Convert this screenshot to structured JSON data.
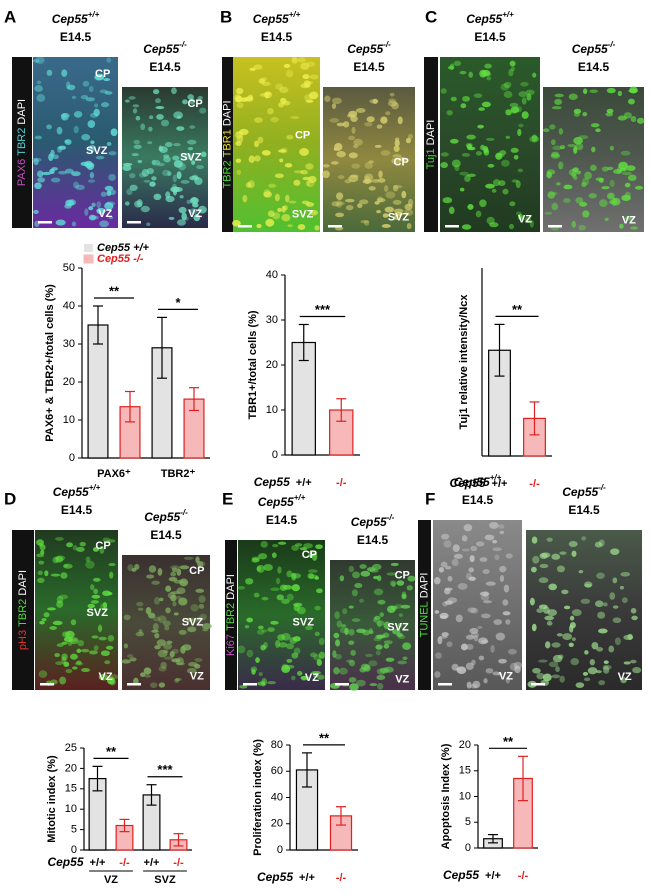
{
  "panels": [
    {
      "letter": "A",
      "genotypes": [
        {
          "gene": "Cep55",
          "allele": "+/+",
          "stage": "E14.5"
        },
        {
          "gene": "Cep55",
          "allele": "-/-",
          "stage": "E14.5"
        }
      ],
      "stains": [
        {
          "text": "PAX6",
          "color": "#c24fc4"
        },
        {
          "text": "TBR2",
          "color": "#4fd3d8"
        },
        {
          "text": "DAPI",
          "color": "#ffffff"
        }
      ],
      "regions": [
        [
          "CP",
          "SVZ",
          "VZ"
        ],
        [
          "CP",
          "SVZ",
          "VZ"
        ]
      ]
    },
    {
      "letter": "B",
      "genotypes": [
        {
          "gene": "Cep55",
          "allele": "+/+",
          "stage": "E14.5"
        },
        {
          "gene": "Cep55",
          "allele": "-/-",
          "stage": "E14.5"
        }
      ],
      "stains": [
        {
          "text": "TBR2",
          "color": "#4fdc3a"
        },
        {
          "text": "TBR1",
          "color": "#f0e030"
        },
        {
          "text": "DAPI",
          "color": "#ffffff"
        }
      ],
      "regions": [
        [
          "CP",
          "SVZ"
        ],
        [
          "CP",
          "SVZ"
        ]
      ]
    },
    {
      "letter": "C",
      "genotypes": [
        {
          "gene": "Cep55",
          "allele": "+/+",
          "stage": "E14.5"
        },
        {
          "gene": "Cep55",
          "allele": "-/-",
          "stage": "E14.5"
        }
      ],
      "stains": [
        {
          "text": "Tuj1",
          "color": "#4fdc3a"
        },
        {
          "text": "DAPI",
          "color": "#ffffff"
        }
      ],
      "regions": [
        [
          "VZ"
        ],
        [
          "VZ"
        ]
      ]
    },
    {
      "letter": "D",
      "genotypes": [
        {
          "gene": "Cep55",
          "allele": "+/+",
          "stage": "E14.5"
        },
        {
          "gene": "Cep55",
          "allele": "-/-",
          "stage": "E14.5"
        }
      ],
      "stains": [
        {
          "text": "pH3",
          "color": "#e83030"
        },
        {
          "text": "TBR2",
          "color": "#4fdc3a"
        },
        {
          "text": "DAPI",
          "color": "#ffffff"
        }
      ],
      "regions": [
        [
          "CP",
          "SVZ",
          "VZ"
        ],
        [
          "CP",
          "SVZ",
          "VZ"
        ]
      ]
    },
    {
      "letter": "E",
      "genotypes": [
        {
          "gene": "Cep55",
          "allele": "+/+",
          "stage": "E14.5"
        },
        {
          "gene": "Cep55",
          "allele": "-/-",
          "stage": "E14.5"
        }
      ],
      "stains": [
        {
          "text": "Ki67",
          "color": "#c24fc4"
        },
        {
          "text": "TBR2",
          "color": "#4fdc3a"
        },
        {
          "text": "DAPI",
          "color": "#ffffff"
        }
      ],
      "regions": [
        [
          "CP",
          "SVZ",
          "VZ"
        ],
        [
          "CP",
          "SVZ",
          "VZ"
        ]
      ]
    },
    {
      "letter": "F",
      "genotypes": [
        {
          "gene": "Cep55",
          "allele": "+/+",
          "stage": "E14.5"
        },
        {
          "gene": "Cep55",
          "allele": "-/-",
          "stage": "E14.5"
        }
      ],
      "stains": [
        {
          "text": "TUNEL",
          "color": "#4fdc3a"
        },
        {
          "text": "DAPI",
          "color": "#ffffff"
        }
      ],
      "regions": [
        [
          "VZ"
        ],
        [
          "VZ"
        ]
      ]
    }
  ],
  "chart_data": [
    {
      "type": "bar",
      "ylabel": "PAX6+ & TBR2+/total cells (%)",
      "categories": [
        "PAX6⁺",
        "TBR2⁺"
      ],
      "series": [
        {
          "name": "Cep55 +/+",
          "color": "#e3e3e3",
          "edgecolor": "#000000",
          "values": [
            35,
            29
          ],
          "errors": [
            5,
            8
          ]
        },
        {
          "name": "Cep55 -/-",
          "color": "#f6b8b8",
          "edgecolor": "#e02020",
          "values": [
            13.5,
            15.5
          ],
          "errors": [
            4,
            3
          ]
        }
      ],
      "significance": [
        "**",
        "*"
      ],
      "ylim": [
        0,
        50
      ],
      "yticks": [
        0,
        10,
        20,
        30,
        40,
        50
      ]
    },
    {
      "type": "bar",
      "ylabel": "TBR1+/total cells (%)",
      "x_label": "Cep55",
      "categories": [
        "+/+",
        "-/-"
      ],
      "values": [
        25,
        10
      ],
      "errors": [
        4,
        2.5
      ],
      "colors": [
        "#e3e3e3",
        "#f6b8b8"
      ],
      "edgecolors": [
        "#000000",
        "#e02020"
      ],
      "significance": [
        "***"
      ],
      "ylim": [
        0,
        40
      ],
      "yticks": [
        0,
        10,
        20,
        30,
        40
      ]
    },
    {
      "type": "bar",
      "ylabel": "Tuj1 relative intensity/Ncx",
      "x_label": "Cep55",
      "categories": [
        "+/+",
        "-/-"
      ],
      "values": [
        45,
        16
      ],
      "errors": [
        11,
        7
      ],
      "colors": [
        "#e3e3e3",
        "#f6b8b8"
      ],
      "edgecolors": [
        "#000000",
        "#e02020"
      ],
      "significance": [
        "**"
      ],
      "ylim": [
        0,
        80
      ]
    },
    {
      "type": "bar",
      "ylabel": "Mitotic index (%)",
      "x_label": "Cep55",
      "categories": [
        "+/+",
        "-/-",
        "+/+",
        "-/-"
      ],
      "groups": [
        "VZ",
        "SVZ"
      ],
      "values": [
        17.5,
        6,
        13.5,
        2.5
      ],
      "errors": [
        3,
        1.5,
        2.5,
        1.5
      ],
      "colors": [
        "#e3e3e3",
        "#f6b8b8",
        "#e3e3e3",
        "#f6b8b8"
      ],
      "edgecolors": [
        "#000000",
        "#e02020",
        "#000000",
        "#e02020"
      ],
      "significance": [
        "**",
        "***"
      ],
      "ylim": [
        0,
        25
      ],
      "yticks": [
        0,
        5,
        10,
        15,
        20,
        25
      ]
    },
    {
      "type": "bar",
      "ylabel": "Proliferation index (%)",
      "x_label": "Cep55",
      "categories": [
        "+/+",
        "-/-"
      ],
      "values": [
        61,
        26
      ],
      "errors": [
        13,
        7
      ],
      "colors": [
        "#e3e3e3",
        "#f6b8b8"
      ],
      "edgecolors": [
        "#000000",
        "#e02020"
      ],
      "significance": [
        "**"
      ],
      "ylim": [
        0,
        80
      ],
      "yticks": [
        0,
        20,
        40,
        60,
        80
      ]
    },
    {
      "type": "bar",
      "ylabel": "Apoptosis Index (%)",
      "x_label": "Cep55",
      "categories": [
        "+/+",
        "-/-"
      ],
      "values": [
        1.8,
        13.5
      ],
      "errors": [
        0.8,
        4.3
      ],
      "colors": [
        "#e3e3e3",
        "#f6b8b8"
      ],
      "edgecolors": [
        "#000000",
        "#e02020"
      ],
      "significance": [
        "**"
      ],
      "ylim": [
        0,
        20
      ],
      "yticks": [
        0,
        5,
        10,
        15,
        20
      ]
    }
  ]
}
